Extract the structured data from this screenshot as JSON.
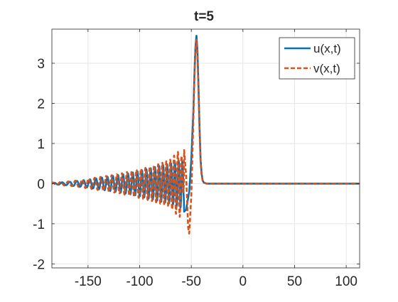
{
  "chart_data": {
    "type": "line",
    "title": "t=5",
    "xlabel": "",
    "ylabel": "",
    "xlim": [
      -185,
      113
    ],
    "ylim": [
      -2.1,
      3.85
    ],
    "xticks": [
      -150,
      -100,
      -50,
      0,
      50,
      100
    ],
    "xtick_labels": [
      "-150",
      "-100",
      "-50",
      "0",
      "50",
      "100"
    ],
    "yticks": [
      -2,
      -1,
      0,
      1,
      2,
      3
    ],
    "ytick_labels": [
      "-2",
      "-1",
      "0",
      "1",
      "2",
      "3"
    ],
    "grid": true,
    "legend_position": "top-right",
    "series": [
      {
        "name": "u(x,t)",
        "color": "#0072BD",
        "line_style": "solid",
        "description_points": {
          "x": [
            -185,
            -170,
            -160,
            -150,
            -140,
            -130,
            -120,
            -110,
            -100,
            -90,
            -80,
            -70,
            -65,
            -60,
            -57,
            -55,
            -52,
            -50,
            -48,
            -47,
            -46,
            -45,
            -44,
            -43,
            -42,
            -41,
            -40,
            -39,
            -38,
            -35,
            0,
            113
          ],
          "envelope": [
            0.02,
            0.04,
            0.07,
            0.1,
            0.14,
            0.18,
            0.22,
            0.26,
            0.32,
            0.38,
            0.45,
            0.5,
            0.55,
            0.6,
            0.5,
            0.0,
            0.0,
            0.0,
            0.0,
            0.0,
            0.0,
            0.0,
            0.0,
            0.0,
            0.0,
            0.0,
            0.0,
            0.0,
            0.0,
            0.0,
            0.0,
            0.0
          ],
          "y": [
            0.0,
            0.0,
            0.0,
            0.0,
            0.0,
            0.0,
            0.0,
            0.0,
            0.0,
            0.0,
            0.0,
            0.0,
            0.0,
            -0.55,
            -0.7,
            -0.65,
            -0.2,
            0.6,
            1.8,
            2.7,
            3.4,
            3.7,
            3.3,
            2.4,
            1.4,
            0.6,
            0.25,
            0.08,
            0.03,
            0.0,
            0.0,
            0.0
          ]
        }
      },
      {
        "name": "v(x,t)",
        "color": "#D95319",
        "line_style": "dashed",
        "description_points": {
          "x": [
            -185,
            -170,
            -160,
            -150,
            -140,
            -130,
            -120,
            -110,
            -100,
            -90,
            -80,
            -70,
            -65,
            -60,
            -57,
            -55,
            -53,
            -52,
            -50,
            -48,
            -47,
            -46,
            -45,
            -44,
            -43,
            -42,
            -41,
            -40,
            -39,
            -38,
            -35,
            0,
            113
          ],
          "envelope": [
            0.03,
            0.05,
            0.08,
            0.12,
            0.16,
            0.2,
            0.24,
            0.3,
            0.36,
            0.42,
            0.5,
            0.6,
            0.75,
            0.85,
            0.0,
            0.0,
            0.0,
            0.0,
            0.0,
            0.0,
            0.0,
            0.0,
            0.0,
            0.0,
            0.0,
            0.0,
            0.0,
            0.0,
            0.0,
            0.0,
            0.0,
            0.0,
            0.0
          ],
          "y": [
            0.0,
            0.0,
            0.0,
            0.0,
            0.0,
            0.0,
            0.0,
            0.0,
            0.0,
            0.0,
            0.0,
            0.0,
            0.0,
            0.0,
            0.85,
            0.2,
            -1.1,
            -1.25,
            -0.3,
            1.6,
            2.6,
            3.3,
            3.6,
            3.2,
            2.3,
            1.3,
            0.55,
            0.2,
            0.07,
            0.02,
            0.0,
            0.0,
            0.0
          ]
        }
      }
    ]
  }
}
